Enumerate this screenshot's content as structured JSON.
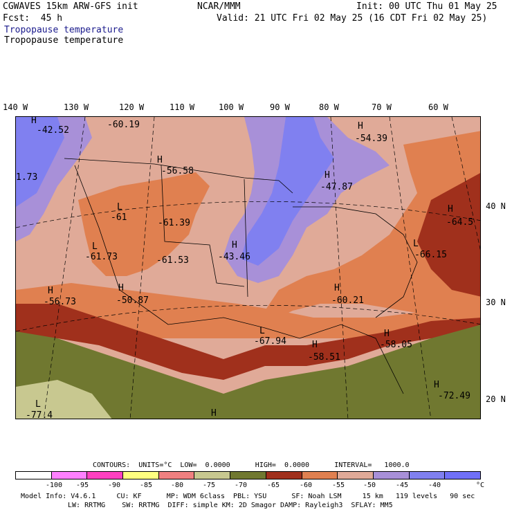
{
  "header": {
    "model": "CGWAVES 15km ARW-GFS init",
    "org": "NCAR/MMM",
    "init": "Init: 00 UTC Thu 01 May 25",
    "fcst": "Fcst:  45 h",
    "valid": "Valid: 21 UTC Fri 02 May 25 (16 CDT Fri 02 May 25)",
    "field1": "Tropopause temperature",
    "field2": "Tropopause temperature"
  },
  "lon_labels": [
    "140 W",
    "130 W",
    "120 W",
    "110 W",
    "100 W",
    "90 W",
    "80 W",
    "70 W",
    "60 W"
  ],
  "lat_labels": [
    "40 N",
    "30 N",
    "20 N"
  ],
  "map_labels": [
    {
      "text": "H",
      "name": "high-marker"
    },
    {
      "text": "-42.52",
      "name": "value-label"
    },
    {
      "text": "-60.19",
      "name": "value-label"
    },
    {
      "text": "H",
      "name": "high-marker"
    },
    {
      "text": "-54.39",
      "name": "value-label"
    },
    {
      "text": "H",
      "name": "high-marker"
    },
    {
      "text": "-56.58",
      "name": "value-label"
    },
    {
      "text": "1.73",
      "name": "value-label"
    },
    {
      "text": "H",
      "name": "high-marker"
    },
    {
      "text": "-47.87",
      "name": "value-label"
    },
    {
      "text": "L",
      "name": "low-marker"
    },
    {
      "text": "-61",
      "name": "value-label"
    },
    {
      "text": "-61.39",
      "name": "value-label"
    },
    {
      "text": "H",
      "name": "high-marker"
    },
    {
      "text": "-64.5",
      "name": "value-label"
    },
    {
      "text": "L",
      "name": "low-marker"
    },
    {
      "text": "-61.73",
      "name": "value-label"
    },
    {
      "text": "H",
      "name": "high-marker"
    },
    {
      "text": "-43.46",
      "name": "value-label"
    },
    {
      "text": "-61.53",
      "name": "value-label"
    },
    {
      "text": "L",
      "name": "low-marker"
    },
    {
      "text": "-66.15",
      "name": "value-label"
    },
    {
      "text": "H",
      "name": "high-marker"
    },
    {
      "text": "-56.73",
      "name": "value-label"
    },
    {
      "text": "H",
      "name": "high-marker"
    },
    {
      "text": "-50.87",
      "name": "value-label"
    },
    {
      "text": "H",
      "name": "high-marker"
    },
    {
      "text": "-60.21",
      "name": "value-label"
    },
    {
      "text": "L",
      "name": "low-marker"
    },
    {
      "text": "-67.94",
      "name": "value-label"
    },
    {
      "text": "H",
      "name": "high-marker"
    },
    {
      "text": "-58.05",
      "name": "value-label"
    },
    {
      "text": "H",
      "name": "high-marker"
    },
    {
      "text": "-58.51",
      "name": "value-label"
    },
    {
      "text": "H",
      "name": "high-marker"
    },
    {
      "text": "-72.49",
      "name": "value-label"
    },
    {
      "text": "L",
      "name": "low-marker"
    },
    {
      "text": "-77.4",
      "name": "value-label"
    },
    {
      "text": "H",
      "name": "high-marker"
    }
  ],
  "contours_line": "CONTOURS:  UNITS=°C  LOW=  0.0000      HIGH=  0.0000      INTERVAL=   1000.0",
  "legend_colors": [
    "#ffffff",
    "#ff80ff",
    "#ff40c0",
    "#ffff80",
    "#f08080",
    "#c8c890",
    "#707830",
    "#a0301c",
    "#e08050",
    "#e0aa98",
    "#a890d8",
    "#8080f0",
    "#7070f8"
  ],
  "legend_ticks": [
    "-100",
    "-95",
    "-90",
    "-85",
    "-80",
    "-75",
    "-70",
    "-65",
    "-60",
    "-55",
    "-50",
    "-45",
    "-40",
    "°C"
  ],
  "footer1": "Model Info: V4.6.1     CU: KF      MP: WDM 6class  PBL: YSU      SF: Noah LSM     15 km   119 levels   90 sec",
  "footer2": "LW: RRTMG    SW: RRTMG  DIFF: simple KM: 2D Smagor DAMP: Rayleigh3  SFLAY: MM5"
}
